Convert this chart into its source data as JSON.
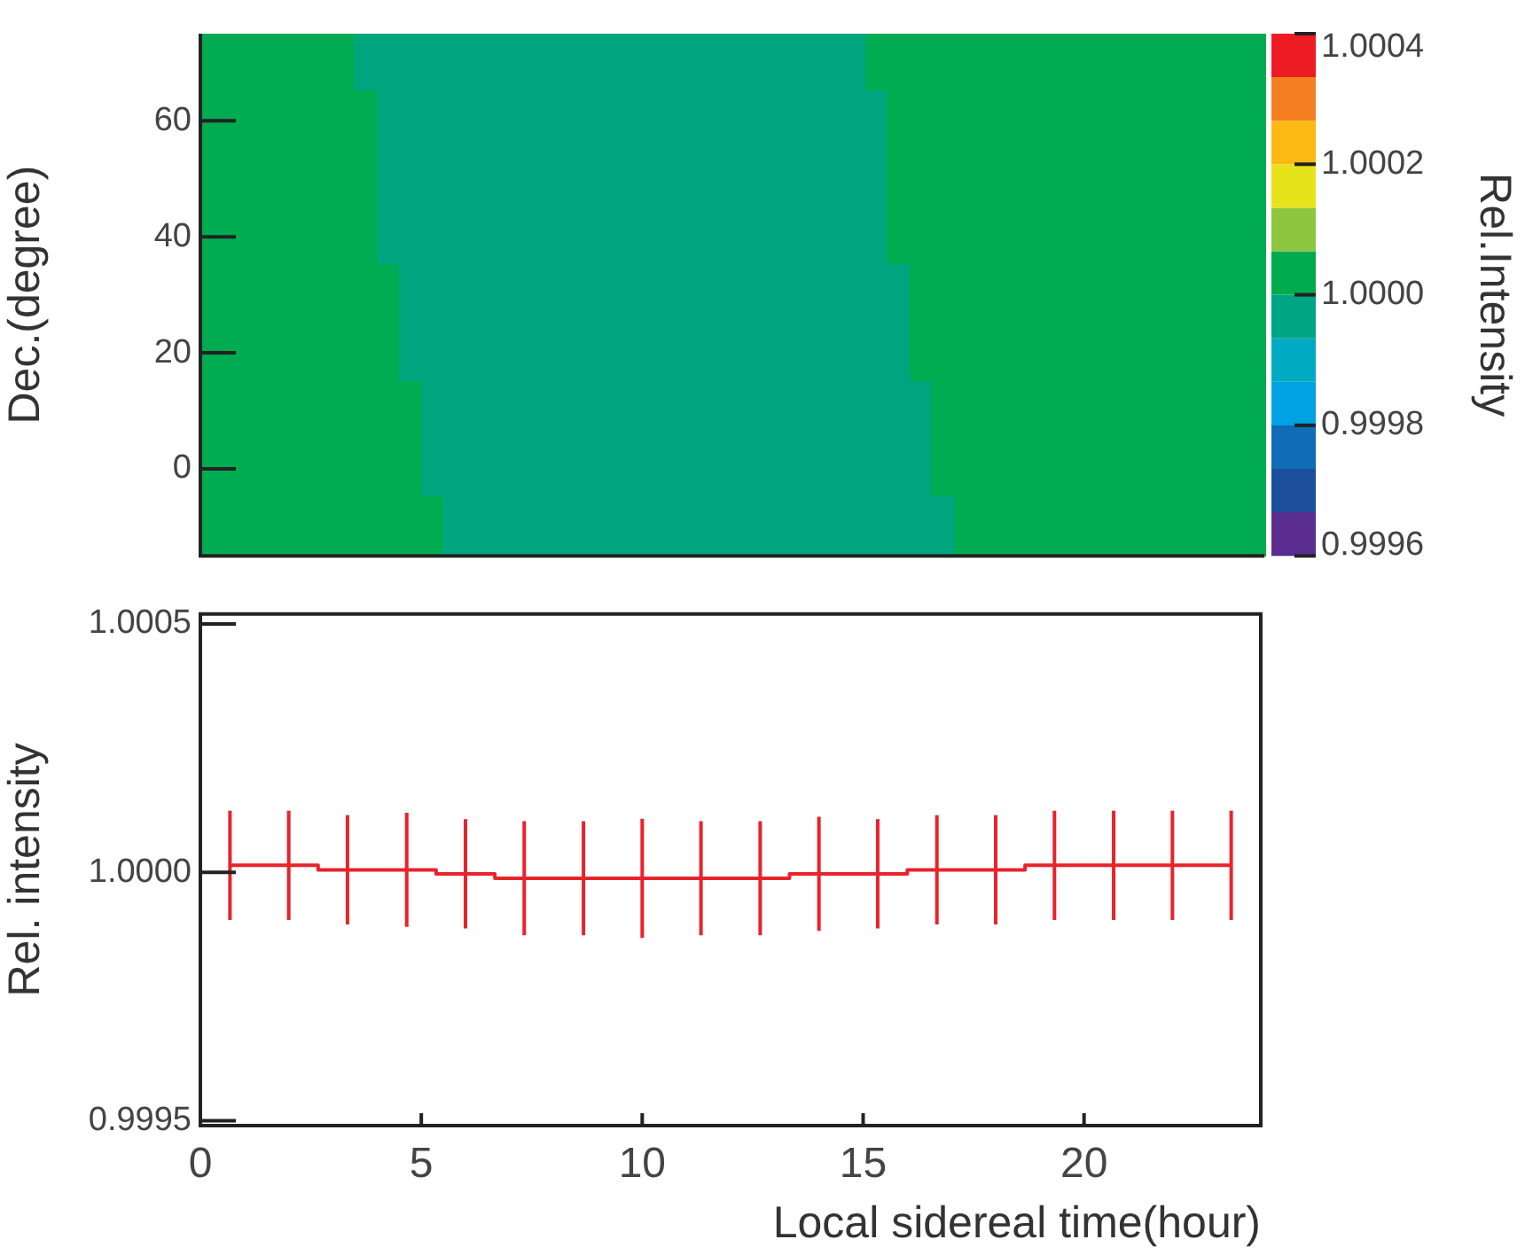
{
  "chart_data": [
    {
      "type": "heatmap",
      "ylabel": "Dec.(degree)",
      "clabel": "Rel.Intensity",
      "categories": [
        null,
        null,
        null,
        null,
        null,
        null,
        null,
        null,
        null,
        null,
        null,
        null,
        null,
        null,
        null,
        null,
        null,
        null,
        null,
        null,
        null,
        null,
        null,
        null,
        null,
        null,
        null,
        null,
        null,
        null,
        null,
        null,
        null,
        null,
        null,
        null,
        null,
        null,
        null,
        null,
        null,
        null,
        null,
        null,
        null,
        null,
        null,
        null
      ],
      "y_categories": [
        null,
        "60",
        null,
        "40",
        null,
        "20",
        null,
        "0",
        null
      ],
      "cells": [
        [
          1.00003,
          1.00003,
          1.00003,
          1.00003,
          1.00003,
          1.00003,
          1.00003,
          0.99997,
          0.99997,
          0.99997,
          0.99997,
          0.99997,
          0.99997,
          0.99997,
          0.99997,
          0.99997,
          0.99997,
          0.99997,
          0.99997,
          0.99997,
          0.99997,
          0.99997,
          0.99997,
          0.99997,
          0.99997,
          0.99997,
          0.99997,
          0.99997,
          0.99997,
          0.99997,
          1.00003,
          1.00003,
          1.00003,
          1.00003,
          1.00003,
          1.00003,
          1.00003,
          1.00003,
          1.00003,
          1.00003,
          1.00003,
          1.00003,
          1.00003,
          1.00003,
          1.00003,
          1.00003,
          1.00003,
          1.00003
        ],
        [
          1.00003,
          1.00003,
          1.00003,
          1.00003,
          1.00003,
          1.00003,
          1.00003,
          1.00003,
          0.99997,
          0.99997,
          0.99997,
          0.99997,
          0.99997,
          0.99997,
          0.99997,
          0.99997,
          0.99997,
          0.99997,
          0.99997,
          0.99997,
          0.99997,
          0.99997,
          0.99997,
          0.99997,
          0.99997,
          0.99997,
          0.99997,
          0.99997,
          0.99997,
          0.99997,
          0.99997,
          1.00003,
          1.00003,
          1.00003,
          1.00003,
          1.00003,
          1.00003,
          1.00003,
          1.00003,
          1.00003,
          1.00003,
          1.00003,
          1.00003,
          1.00003,
          1.00003,
          1.00003,
          1.00003,
          1.00003
        ],
        [
          1.00003,
          1.00003,
          1.00003,
          1.00003,
          1.00003,
          1.00003,
          1.00003,
          1.00003,
          0.99997,
          0.99997,
          0.99997,
          0.99997,
          0.99997,
          0.99997,
          0.99997,
          0.99997,
          0.99997,
          0.99997,
          0.99997,
          0.99997,
          0.99997,
          0.99997,
          0.99997,
          0.99997,
          0.99997,
          0.99997,
          0.99997,
          0.99997,
          0.99997,
          0.99997,
          0.99997,
          1.00003,
          1.00003,
          1.00003,
          1.00003,
          1.00003,
          1.00003,
          1.00003,
          1.00003,
          1.00003,
          1.00003,
          1.00003,
          1.00003,
          1.00003,
          1.00003,
          1.00003,
          1.00003,
          1.00003
        ],
        [
          1.00003,
          1.00003,
          1.00003,
          1.00003,
          1.00003,
          1.00003,
          1.00003,
          1.00003,
          0.99997,
          0.99997,
          0.99997,
          0.99997,
          0.99997,
          0.99997,
          0.99997,
          0.99997,
          0.99997,
          0.99997,
          0.99997,
          0.99997,
          0.99997,
          0.99997,
          0.99997,
          0.99997,
          0.99997,
          0.99997,
          0.99997,
          0.99997,
          0.99997,
          0.99997,
          0.99997,
          1.00003,
          1.00003,
          1.00003,
          1.00003,
          1.00003,
          1.00003,
          1.00003,
          1.00003,
          1.00003,
          1.00003,
          1.00003,
          1.00003,
          1.00003,
          1.00003,
          1.00003,
          1.00003,
          1.00003
        ],
        [
          1.00003,
          1.00003,
          1.00003,
          1.00003,
          1.00003,
          1.00003,
          1.00003,
          1.00003,
          1.00003,
          0.99997,
          0.99997,
          0.99997,
          0.99997,
          0.99997,
          0.99997,
          0.99997,
          0.99997,
          0.99997,
          0.99997,
          0.99997,
          0.99997,
          0.99997,
          0.99997,
          0.99997,
          0.99997,
          0.99997,
          0.99997,
          0.99997,
          0.99997,
          0.99997,
          0.99997,
          0.99997,
          1.00003,
          1.00003,
          1.00003,
          1.00003,
          1.00003,
          1.00003,
          1.00003,
          1.00003,
          1.00003,
          1.00003,
          1.00003,
          1.00003,
          1.00003,
          1.00003,
          1.00003,
          1.00003
        ],
        [
          1.00003,
          1.00003,
          1.00003,
          1.00003,
          1.00003,
          1.00003,
          1.00003,
          1.00003,
          1.00003,
          0.99997,
          0.99997,
          0.99997,
          0.99997,
          0.99997,
          0.99997,
          0.99997,
          0.99997,
          0.99997,
          0.99997,
          0.99997,
          0.99997,
          0.99997,
          0.99997,
          0.99997,
          0.99997,
          0.99997,
          0.99997,
          0.99997,
          0.99997,
          0.99997,
          0.99997,
          0.99997,
          1.00003,
          1.00003,
          1.00003,
          1.00003,
          1.00003,
          1.00003,
          1.00003,
          1.00003,
          1.00003,
          1.00003,
          1.00003,
          1.00003,
          1.00003,
          1.00003,
          1.00003,
          1.00003
        ],
        [
          1.00003,
          1.00003,
          1.00003,
          1.00003,
          1.00003,
          1.00003,
          1.00003,
          1.00003,
          1.00003,
          1.00003,
          0.99997,
          0.99997,
          0.99997,
          0.99997,
          0.99997,
          0.99997,
          0.99997,
          0.99997,
          0.99997,
          0.99997,
          0.99997,
          0.99997,
          0.99997,
          0.99997,
          0.99997,
          0.99997,
          0.99997,
          0.99997,
          0.99997,
          0.99997,
          0.99997,
          0.99997,
          0.99997,
          1.00003,
          1.00003,
          1.00003,
          1.00003,
          1.00003,
          1.00003,
          1.00003,
          1.00003,
          1.00003,
          1.00003,
          1.00003,
          1.00003,
          1.00003,
          1.00003,
          1.00003
        ],
        [
          1.00003,
          1.00003,
          1.00003,
          1.00003,
          1.00003,
          1.00003,
          1.00003,
          1.00003,
          1.00003,
          1.00003,
          0.99997,
          0.99997,
          0.99997,
          0.99997,
          0.99997,
          0.99997,
          0.99997,
          0.99997,
          0.99997,
          0.99997,
          0.99997,
          0.99997,
          0.99997,
          0.99997,
          0.99997,
          0.99997,
          0.99997,
          0.99997,
          0.99997,
          0.99997,
          0.99997,
          0.99997,
          0.99997,
          1.00003,
          1.00003,
          1.00003,
          1.00003,
          1.00003,
          1.00003,
          1.00003,
          1.00003,
          1.00003,
          1.00003,
          1.00003,
          1.00003,
          1.00003,
          1.00003,
          1.00003
        ],
        [
          1.00003,
          1.00003,
          1.00003,
          1.00003,
          1.00003,
          1.00003,
          1.00003,
          1.00003,
          1.00003,
          1.00003,
          1.00003,
          0.99997,
          0.99997,
          0.99997,
          0.99997,
          0.99997,
          0.99997,
          0.99997,
          0.99997,
          0.99997,
          0.99997,
          0.99997,
          0.99997,
          0.99997,
          0.99997,
          0.99997,
          0.99997,
          0.99997,
          0.99997,
          0.99997,
          0.99997,
          0.99997,
          0.99997,
          0.99997,
          1.00003,
          1.00003,
          1.00003,
          1.00003,
          1.00003,
          1.00003,
          1.00003,
          1.00003,
          1.00003,
          1.00003,
          1.00003,
          1.00003,
          1.00003,
          1.00003
        ]
      ],
      "colors": [
        "#5b2d90",
        "#1b4f9c",
        "#0f6cb6",
        "#00a2e3",
        "#00aac2",
        "#00a583",
        "#00ab4e",
        "#8dc63f",
        "#e7e31a",
        "#fcb913",
        "#f37f21",
        "#ed1c24"
      ],
      "clim": [
        0.9996,
        1.0004
      ],
      "cticks": [
        {
          "value": 0.9996,
          "label": "0.9996"
        },
        {
          "value": 0.9998,
          "label": "0.9998"
        },
        {
          "value": 1.0,
          "label": "1.0000"
        },
        {
          "value": 1.0002,
          "label": "1.0002"
        },
        {
          "value": 1.0004,
          "label": "1.0004"
        }
      ]
    },
    {
      "type": "step",
      "xlabel": "Local sidereal time(hour)",
      "ylabel": "Rel. intensity",
      "marker": "none",
      "x": [
        0.67,
        2.0,
        3.33,
        4.67,
        6.0,
        7.33,
        8.67,
        10.0,
        11.33,
        12.67,
        14.0,
        15.33,
        16.67,
        18.0,
        19.33,
        20.67,
        22.0,
        23.33
      ],
      "series": [
        {
          "color": "#e8232b",
          "values": [
            1.000014,
            1.000014,
            1.000005,
            1.000005,
            0.999997,
            0.999988,
            0.999988,
            0.999988,
            0.999988,
            0.999988,
            0.999997,
            0.999997,
            1.000005,
            1.000005,
            1.000014,
            1.000014,
            1.000014,
            1.000014
          ],
          "errors": [
            0.00011,
            0.00011,
            0.00011,
            0.000115,
            0.00011,
            0.000115,
            0.000115,
            0.00012,
            0.000115,
            0.000115,
            0.000115,
            0.00011,
            0.00011,
            0.00011,
            0.00011,
            0.00011,
            0.00011,
            0.00011
          ]
        }
      ],
      "xlim": [
        0,
        24
      ],
      "xticks": [
        0,
        5,
        10,
        15,
        20
      ],
      "ylim": [
        0.99949,
        1.00052
      ],
      "yticks": [
        {
          "value": 0.9995,
          "label": "0.9995"
        },
        {
          "value": 1.0,
          "label": "1.0000"
        },
        {
          "value": 1.0005,
          "label": "1.0005"
        }
      ]
    }
  ]
}
